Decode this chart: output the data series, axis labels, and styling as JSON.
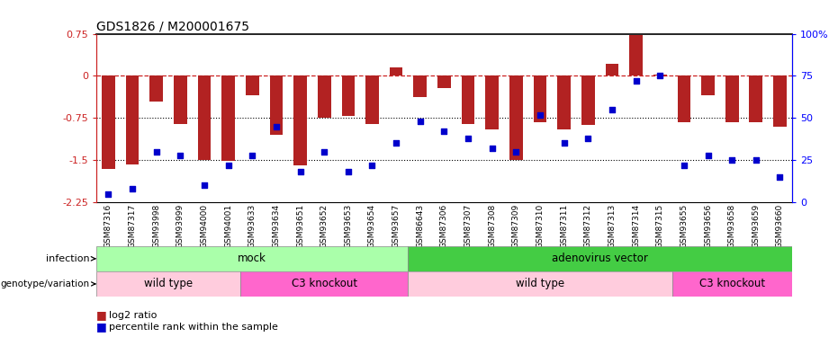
{
  "title": "GDS1826 / M200001675",
  "samples": [
    "GSM87316",
    "GSM87317",
    "GSM93998",
    "GSM93999",
    "GSM94000",
    "GSM94001",
    "GSM93633",
    "GSM93634",
    "GSM93651",
    "GSM93652",
    "GSM93653",
    "GSM93654",
    "GSM93657",
    "GSM86643",
    "GSM87306",
    "GSM87307",
    "GSM87308",
    "GSM87309",
    "GSM87310",
    "GSM87311",
    "GSM87312",
    "GSM87313",
    "GSM87314",
    "GSM87315",
    "GSM93655",
    "GSM93656",
    "GSM93658",
    "GSM93659",
    "GSM93660"
  ],
  "log2_ratio": [
    -1.65,
    -1.58,
    -0.45,
    -0.85,
    -1.5,
    -1.52,
    -0.35,
    -1.05,
    -1.6,
    -0.75,
    -0.72,
    -0.85,
    0.15,
    -0.38,
    -0.22,
    -0.85,
    -0.95,
    -1.5,
    -0.82,
    -0.95,
    -0.88,
    0.22,
    0.72,
    0.02,
    -0.82,
    -0.35,
    -0.82,
    -0.82,
    -0.9
  ],
  "percentile_rank": [
    5,
    8,
    30,
    28,
    10,
    22,
    28,
    45,
    18,
    30,
    18,
    22,
    35,
    48,
    42,
    38,
    32,
    30,
    52,
    35,
    38,
    55,
    72,
    75,
    22,
    28,
    25,
    25,
    15
  ],
  "ylim_left": [
    -2.25,
    0.75
  ],
  "ylim_right": [
    0,
    100
  ],
  "bar_color": "#b22222",
  "dot_color": "#0000cc",
  "bar_width": 0.55,
  "infection_groups": [
    {
      "label": "mock",
      "start": 0,
      "end": 12,
      "color": "#aaffaa"
    },
    {
      "label": "adenovirus vector",
      "start": 13,
      "end": 28,
      "color": "#44cc44"
    }
  ],
  "genotype_groups": [
    {
      "label": "wild type",
      "start": 0,
      "end": 5,
      "color": "#ffccdd"
    },
    {
      "label": "C3 knockout",
      "start": 6,
      "end": 12,
      "color": "#ff66cc"
    },
    {
      "label": "wild type",
      "start": 13,
      "end": 23,
      "color": "#ffccdd"
    },
    {
      "label": "C3 knockout",
      "start": 24,
      "end": 28,
      "color": "#ff66cc"
    }
  ],
  "infection_label": "infection",
  "genotype_label": "genotype/variation",
  "legend_bar": "log2 ratio",
  "legend_dot": "percentile rank within the sample",
  "left_yticks": [
    0.75,
    0.0,
    -0.75,
    -1.5,
    -2.25
  ],
  "left_ytick_labels": [
    "0.75",
    "0",
    "-0.75",
    "-1.5",
    "-2.25"
  ],
  "right_yticks": [
    100,
    75,
    50,
    25,
    0
  ],
  "right_ytick_labels": [
    "100%",
    "75",
    "50",
    "25",
    "0"
  ]
}
